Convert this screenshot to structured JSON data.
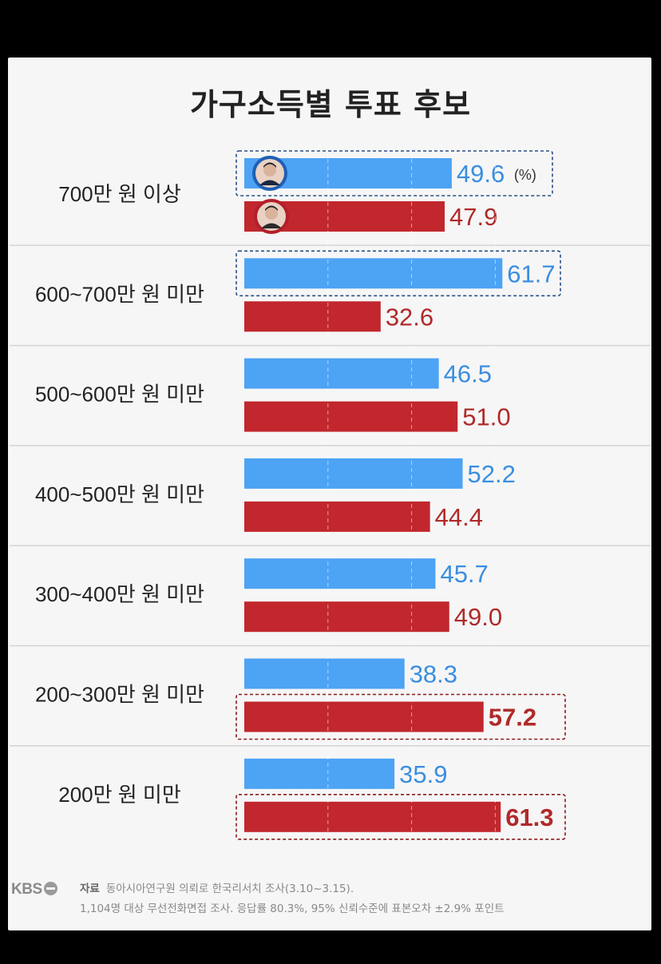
{
  "title": "가구소득별 투표 후보",
  "unit_label": "(%)",
  "colors": {
    "blue": "#4da3f4",
    "red": "#c1272d",
    "blue_text": "#3a8ee0",
    "red_text": "#b02a2a",
    "box_blue": "#2a4f86",
    "box_red": "#8a1c1c"
  },
  "chart_data": {
    "type": "bar",
    "orientation": "horizontal",
    "title": "가구소득별 투표 후보",
    "unit": "%",
    "categories": [
      "700만 원 이상",
      "600~700만 원 미만",
      "500~600만 원 미만",
      "400~500만 원 미만",
      "300~400만 원 미만",
      "200~300만 원 미만",
      "200만 원 미만"
    ],
    "series": [
      {
        "name": "blue",
        "color": "#4da3f4",
        "values": [
          49.6,
          61.7,
          46.5,
          52.2,
          45.7,
          38.3,
          35.9
        ]
      },
      {
        "name": "red",
        "color": "#c1272d",
        "values": [
          47.9,
          32.6,
          51.0,
          44.4,
          49.0,
          57.2,
          61.3
        ]
      }
    ],
    "labels": {
      "blue": [
        "49.6",
        "61.7",
        "46.5",
        "52.2",
        "45.7",
        "38.3",
        "35.9"
      ],
      "red": [
        "47.9",
        "32.6",
        "51.0",
        "44.4",
        "49.0",
        "57.2",
        "61.3"
      ]
    },
    "highlighted": {
      "blue": [
        0,
        1
      ],
      "red": [
        5,
        6
      ]
    },
    "bold_labels": {
      "red": [
        5,
        6
      ]
    }
  },
  "footer": {
    "logo": "KBS",
    "source_label": "자료",
    "source_line1": "동아시아연구원 의뢰로 한국리서치 조사(3.10~3.15).",
    "source_line2": "1,104명 대상 무선전화면접 조사. 응답률 80.3%, 95% 신뢰수준에 표본오차 ±2.9% 포인트"
  }
}
